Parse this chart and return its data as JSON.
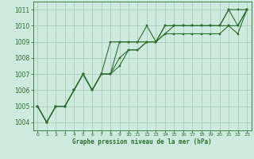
{
  "title": "Graphe pression niveau de la mer (hPa)",
  "background_color": "#ceeade",
  "grid_color": "#a8ccb8",
  "line_color": "#2d6e2d",
  "marker_color": "#2d6e2d",
  "xlim": [
    -0.5,
    23.5
  ],
  "ylim": [
    1003.5,
    1011.5
  ],
  "xticks": [
    0,
    1,
    2,
    3,
    4,
    5,
    6,
    7,
    8,
    9,
    10,
    11,
    12,
    13,
    14,
    15,
    16,
    17,
    18,
    19,
    20,
    21,
    22,
    23
  ],
  "yticks": [
    1004,
    1005,
    1006,
    1007,
    1008,
    1009,
    1010,
    1011
  ],
  "series": [
    [
      1005.0,
      1004.0,
      1005.0,
      1005.0,
      1006.0,
      1007.0,
      1006.0,
      1007.0,
      1009.0,
      1009.0,
      1009.0,
      1009.0,
      1010.0,
      1009.0,
      1010.0,
      1010.0,
      1010.0,
      1010.0,
      1010.0,
      1010.0,
      1010.0,
      1011.0,
      1011.0,
      1011.0
    ],
    [
      1005.0,
      1004.0,
      1005.0,
      1005.0,
      1006.0,
      1007.0,
      1006.0,
      1007.0,
      1007.0,
      1009.0,
      1009.0,
      1009.0,
      1009.0,
      1009.0,
      1010.0,
      1010.0,
      1010.0,
      1010.0,
      1010.0,
      1010.0,
      1010.0,
      1011.0,
      1010.0,
      1011.0
    ],
    [
      1005.0,
      1004.0,
      1005.0,
      1005.0,
      1006.0,
      1007.0,
      1006.0,
      1007.0,
      1007.0,
      1008.0,
      1008.5,
      1008.5,
      1009.0,
      1009.0,
      1009.5,
      1010.0,
      1010.0,
      1010.0,
      1010.0,
      1010.0,
      1010.0,
      1010.0,
      1010.0,
      1011.0
    ],
    [
      1005.0,
      1004.0,
      1005.0,
      1005.0,
      1006.0,
      1007.0,
      1006.0,
      1007.0,
      1007.0,
      1007.5,
      1008.5,
      1008.5,
      1009.0,
      1009.0,
      1009.5,
      1009.5,
      1009.5,
      1009.5,
      1009.5,
      1009.5,
      1009.5,
      1010.0,
      1009.5,
      1011.0
    ]
  ],
  "figsize": [
    3.2,
    2.0
  ],
  "dpi": 100
}
